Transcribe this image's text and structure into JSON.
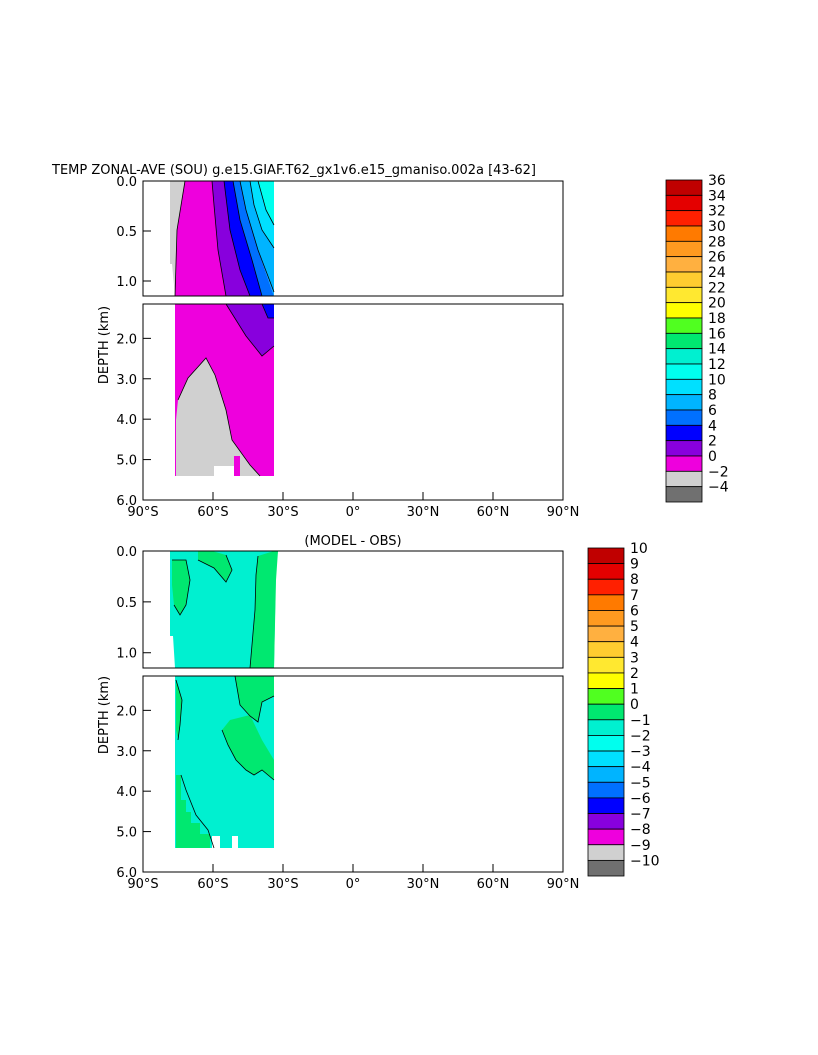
{
  "title": "TEMP ZONAL-AVE (SOU) g.e15.GIAF.T62_gx1v6.e15_gmaniso.002a [43-62]",
  "chart_data": [
    {
      "type": "contour",
      "title": "TEMP ZONAL-AVE (SOU) g.e15.GIAF.T62_gx1v6.e15_gmaniso.002a [43-62]",
      "xlabel": "",
      "ylabel": "DEPTH (km)",
      "x_ticks": [
        "90°S",
        "60°S",
        "30°S",
        "0°",
        "30°N",
        "60°N",
        "90°N"
      ],
      "x_tick_values": [
        -90,
        -60,
        -30,
        0,
        30,
        60,
        90
      ],
      "xlim": [
        -90,
        90
      ],
      "y_ticks_upper": [
        "0.0",
        "0.5",
        "1.0"
      ],
      "y_ticks_lower": [
        "2.0",
        "3.0",
        "4.0",
        "5.0",
        "6.0"
      ],
      "ylim_upper": [
        0,
        1.15
      ],
      "ylim_lower": [
        1.15,
        6.0
      ],
      "legend": {
        "placement": "right",
        "labels": [
          "36",
          "34",
          "32",
          "30",
          "28",
          "26",
          "24",
          "22",
          "20",
          "18",
          "16",
          "14",
          "12",
          "10",
          "8",
          "6",
          "4",
          "2",
          "0",
          "−2",
          "−4"
        ],
        "colors": [
          "#c00000",
          "#e40000",
          "#ff2000",
          "#ff7a00",
          "#ff9a20",
          "#ffb040",
          "#ffcc30",
          "#ffe830",
          "#ffff00",
          "#50ff20",
          "#00e870",
          "#00f0d0",
          "#00ffee",
          "#00e0ff",
          "#00b4ff",
          "#0070ff",
          "#0000ff",
          "#8800dd",
          "#ee00dd",
          "#d0d0d0",
          "#707070"
        ]
      },
      "field_regions": [
        {
          "level": "−2 to 0",
          "color": "#d0d0d0"
        },
        {
          "level": "0 to 2",
          "color": "#ee00dd"
        },
        {
          "level": "2 to 4",
          "color": "#8800dd"
        },
        {
          "level": "4 to 6",
          "color": "#0000ff"
        },
        {
          "level": "6 to 8",
          "color": "#0070ff"
        },
        {
          "level": "8 to 10",
          "color": "#00b4ff"
        },
        {
          "level": "10 to 12",
          "color": "#00e0ff"
        }
      ],
      "data_extent": {
        "lat_min": -76,
        "lat_max": -33,
        "depth_max": 5.4
      }
    },
    {
      "type": "contour",
      "title": "(MODEL - OBS)",
      "xlabel": "",
      "ylabel": "DEPTH (km)",
      "x_ticks": [
        "90°S",
        "60°S",
        "30°S",
        "0°",
        "30°N",
        "60°N",
        "90°N"
      ],
      "x_tick_values": [
        -90,
        -60,
        -30,
        0,
        30,
        60,
        90
      ],
      "xlim": [
        -90,
        90
      ],
      "y_ticks_upper": [
        "0.0",
        "0.5",
        "1.0"
      ],
      "y_ticks_lower": [
        "2.0",
        "3.0",
        "4.0",
        "5.0",
        "6.0"
      ],
      "ylim_upper": [
        0,
        1.15
      ],
      "ylim_lower": [
        1.15,
        6.0
      ],
      "legend": {
        "placement": "right",
        "labels": [
          "10",
          "9",
          "8",
          "7",
          "6",
          "5",
          "4",
          "3",
          "2",
          "1",
          "0",
          "−1",
          "−2",
          "−3",
          "−4",
          "−5",
          "−6",
          "−7",
          "−8",
          "−9",
          "−10"
        ],
        "colors": [
          "#c00000",
          "#e40000",
          "#ff2000",
          "#ff7a00",
          "#ff9a20",
          "#ffb040",
          "#ffcc30",
          "#ffe830",
          "#ffff00",
          "#50ff20",
          "#00e870",
          "#00f0d0",
          "#00ffee",
          "#00e0ff",
          "#00b4ff",
          "#0070ff",
          "#0000ff",
          "#8800dd",
          "#ee00dd",
          "#d0d0d0",
          "#707070"
        ]
      },
      "field_regions": [
        {
          "level": "−1 to 0",
          "color": "#00f0d0"
        },
        {
          "level": "0 to 1",
          "color": "#00e870"
        }
      ],
      "data_extent": {
        "lat_min": -76,
        "lat_max": -33,
        "depth_max": 5.4
      }
    }
  ]
}
